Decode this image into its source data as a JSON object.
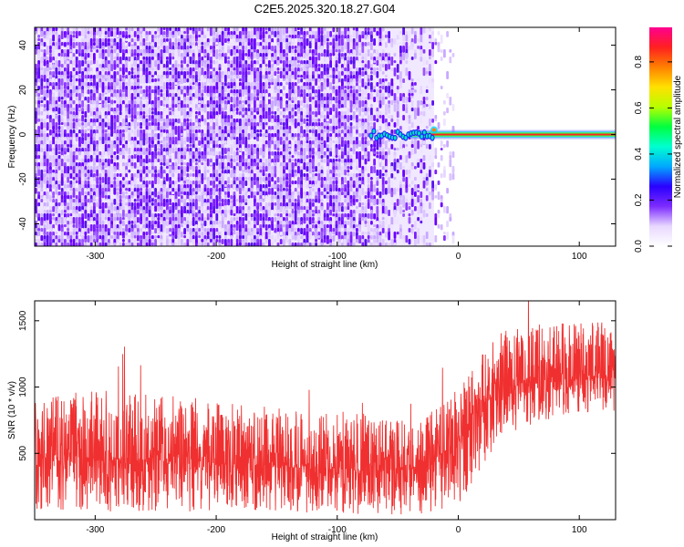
{
  "title": "C2E5.2025.320.18.27.G04",
  "chart_data": [
    {
      "type": "heatmap",
      "xlabel": "Height of straight line (km)",
      "ylabel": "Frequency (Hz)",
      "xlim": [
        -350,
        130
      ],
      "ylim": [
        -50,
        48
      ],
      "x_ticks": [
        -300,
        -200,
        -100,
        0,
        100
      ],
      "y_ticks": [
        -40,
        -20,
        0,
        20,
        40
      ],
      "colorbar": {
        "label": "Normalized spectral amplitude",
        "range": [
          0,
          0.95
        ],
        "ticks": [
          0.0,
          0.2,
          0.4,
          0.6,
          0.8
        ],
        "colors": [
          "#ffffff",
          "#e8d8ff",
          "#7d2cff",
          "#2a00ff",
          "#00a8ff",
          "#00ffd0",
          "#00ff40",
          "#b8ff00",
          "#ffe000",
          "#ff8000",
          "#ff2020",
          "#ff0090"
        ]
      },
      "features": {
        "noise_region_x": [
          -350,
          -40
        ],
        "fade_region_x": [
          -80,
          -10
        ],
        "signal_line_y": 0,
        "signal_start_x": -72
      }
    },
    {
      "type": "line",
      "xlabel": "Height of straight line (km)",
      "ylabel": "SNR (10 * v/v)",
      "xlim": [
        -350,
        130
      ],
      "ylim": [
        0,
        1650
      ],
      "x_ticks": [
        -300,
        -200,
        -100,
        0,
        100
      ],
      "y_ticks": [
        500,
        1000,
        1500
      ],
      "series_color": "#f03030",
      "envelope": {
        "x": [
          -350,
          -300,
          -250,
          -200,
          -150,
          -100,
          -60,
          -40,
          -20,
          0,
          20,
          40,
          70,
          100,
          130
        ],
        "upper": [
          900,
          1000,
          950,
          900,
          850,
          820,
          780,
          760,
          820,
          1000,
          1300,
          1450,
          1480,
          1480,
          1520
        ],
        "lower": [
          80,
          60,
          60,
          60,
          60,
          40,
          30,
          30,
          40,
          100,
          400,
          650,
          750,
          800,
          800
        ],
        "center": [
          470,
          470,
          450,
          420,
          400,
          380,
          360,
          380,
          450,
          600,
          900,
          1000,
          1050,
          1060,
          1080
        ]
      }
    }
  ]
}
